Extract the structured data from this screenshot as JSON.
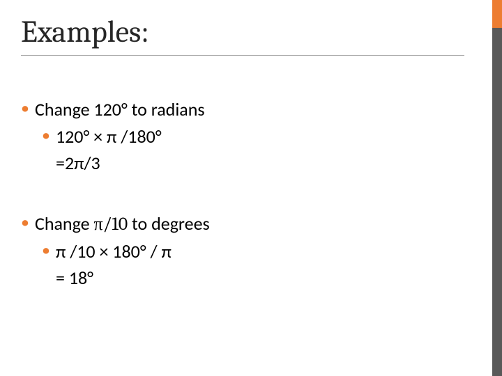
{
  "slide": {
    "title": "Examples:",
    "accent_colors": {
      "orange": "#ed7d31",
      "gray": "#595959"
    },
    "text_color": "#000000",
    "title_color": "#262626",
    "title_fontsize": 44,
    "body_fontsize": 26,
    "background_color": "#ffffff",
    "divider_color": "#a6a6a6",
    "blocks": [
      {
        "level1": "Change 120° to radians",
        "level2_a": "120° × π /180°",
        "level2_b": "=2π/3"
      },
      {
        "level1_pre": "Change ",
        "level1_math": "π/10",
        "level1_post": " to degrees",
        "level2_a": "π /10 × 180° / π",
        "level2_b": "= 18°"
      }
    ]
  }
}
